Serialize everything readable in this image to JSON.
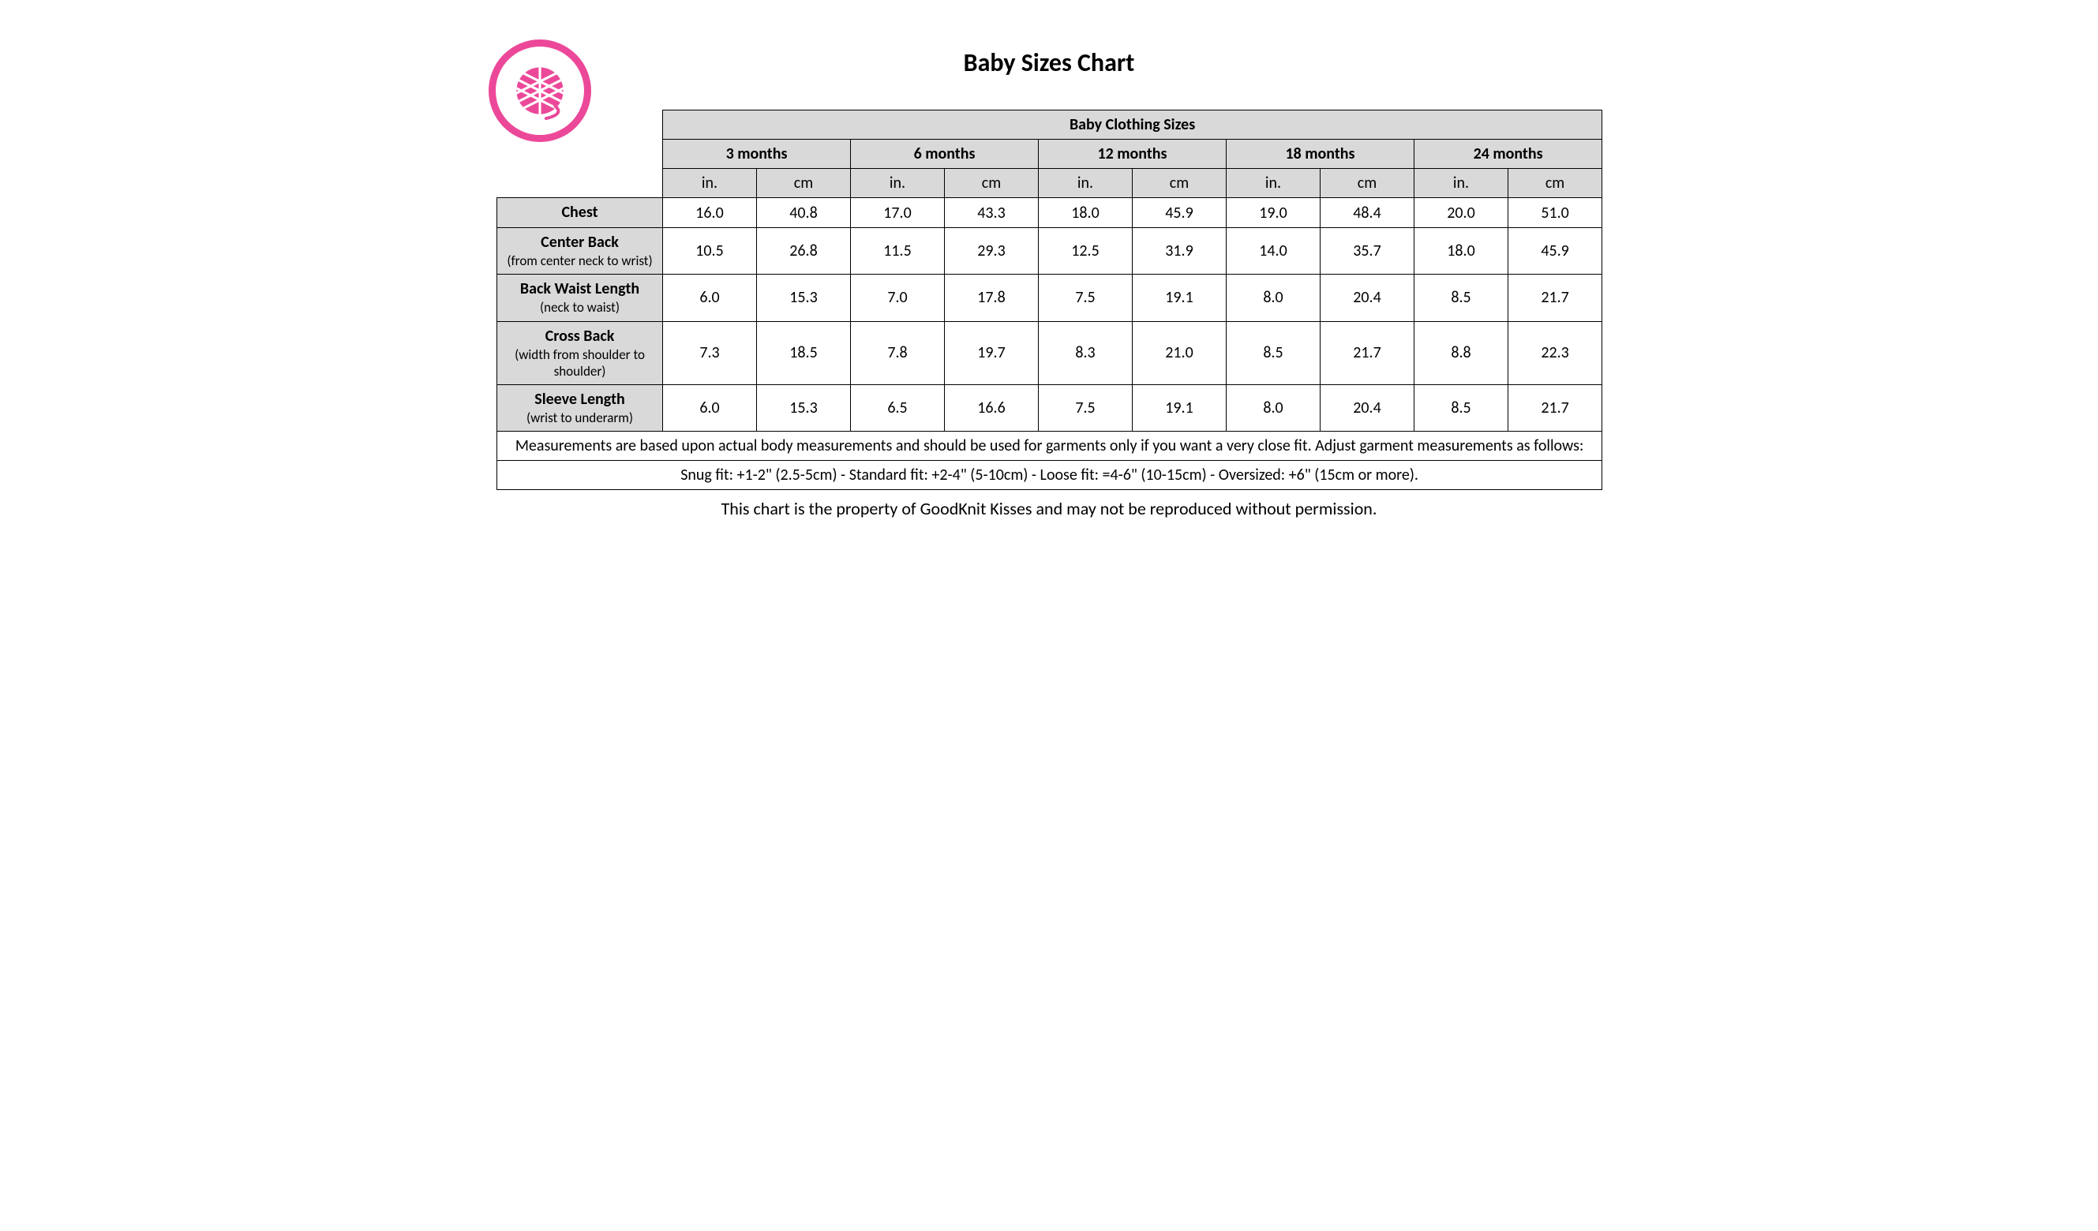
{
  "title": "Baby Sizes Chart",
  "superheader": "Baby Clothing Sizes",
  "ages": [
    "3 months",
    "6 months",
    "12 months",
    "18 months",
    "24 months"
  ],
  "units": [
    "in.",
    "cm"
  ],
  "rows": [
    {
      "label_main": "Chest",
      "label_sub": "",
      "values": [
        "16.0",
        "40.8",
        "17.0",
        "43.3",
        "18.0",
        "45.9",
        "19.0",
        "48.4",
        "20.0",
        "51.0"
      ]
    },
    {
      "label_main": "Center Back",
      "label_sub": "(from center neck to wrist)",
      "values": [
        "10.5",
        "26.8",
        "11.5",
        "29.3",
        "12.5",
        "31.9",
        "14.0",
        "35.7",
        "18.0",
        "45.9"
      ]
    },
    {
      "label_main": "Back Waist Length",
      "label_sub": "(neck to waist)",
      "values": [
        "6.0",
        "15.3",
        "7.0",
        "17.8",
        "7.5",
        "19.1",
        "8.0",
        "20.4",
        "8.5",
        "21.7"
      ]
    },
    {
      "label_main": "Cross Back",
      "label_sub": "(width from shoulder to shoulder)",
      "values": [
        "7.3",
        "18.5",
        "7.8",
        "19.7",
        "8.3",
        "21.0",
        "8.5",
        "21.7",
        "8.8",
        "22.3"
      ]
    },
    {
      "label_main": "Sleeve Length",
      "label_sub": "(wrist to underarm)",
      "values": [
        "6.0",
        "15.3",
        "6.5",
        "16.6",
        "7.5",
        "19.1",
        "8.0",
        "20.4",
        "8.5",
        "21.7"
      ]
    }
  ],
  "note1": "Measurements are based upon actual body measurements and should be used for garments only if you want a very close fit.  Adjust garment measurements as follows:",
  "note2": "Snug fit: +1-2\" (2.5-5cm)   -   Standard fit: +2-4\" (5-10cm)   -    Loose fit: =4-6\" (10-15cm)   -    Oversized: +6\" (15cm or more).",
  "footer": "This chart is the property of GoodKnit Kisses and may not be reproduced without permission.",
  "colors": {
    "accent": "#ec4899",
    "header_bg": "#d9d9d9",
    "border": "#000000",
    "text": "#000000",
    "background": "#ffffff"
  }
}
